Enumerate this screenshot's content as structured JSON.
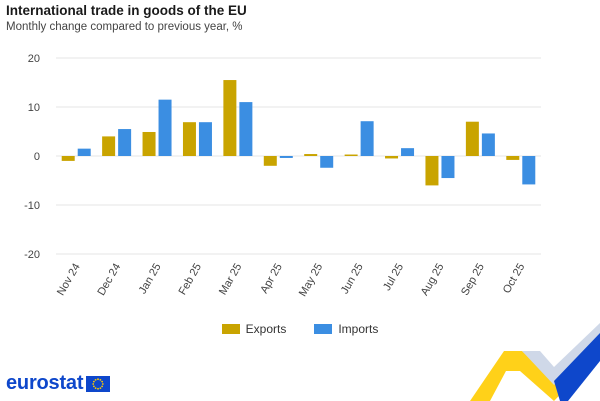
{
  "header": {
    "title": "International trade in goods of the EU",
    "subtitle": "Monthly change compared to previous year, %"
  },
  "legend": {
    "exports_label": "Exports",
    "imports_label": "Imports"
  },
  "logo": {
    "text": "eurostat"
  },
  "colors": {
    "exports": "#c9a400",
    "imports": "#3b8ee2",
    "grid": "#e6e6e6",
    "logo_blue": "#0e47cb",
    "logo_yellow": "#ffcc00"
  },
  "chart_data": {
    "type": "bar",
    "categories": [
      "Nov 24",
      "Dec 24",
      "Jan 25",
      "Feb 25",
      "Mar 25",
      "Apr 25",
      "May 25",
      "Jun 25",
      "Jul 25",
      "Aug 25",
      "Sep 25",
      "Oct 25"
    ],
    "series": [
      {
        "name": "Exports",
        "values": [
          -1.0,
          4.0,
          4.9,
          6.9,
          15.5,
          -2.0,
          0.4,
          0.3,
          -0.5,
          -6.0,
          7.0,
          -0.8
        ]
      },
      {
        "name": "Imports",
        "values": [
          1.5,
          5.5,
          11.5,
          6.9,
          11.0,
          -0.4,
          -2.4,
          7.1,
          1.6,
          -4.5,
          4.6,
          -5.8
        ]
      }
    ],
    "title": "International trade in goods of the EU",
    "subtitle": "Monthly change compared to previous year, %",
    "xlabel": "",
    "ylabel": "",
    "ylim": [
      -20,
      20
    ],
    "yticks": [
      20,
      10,
      0,
      -10,
      -20
    ],
    "grid": true,
    "legend_position": "bottom-center"
  }
}
